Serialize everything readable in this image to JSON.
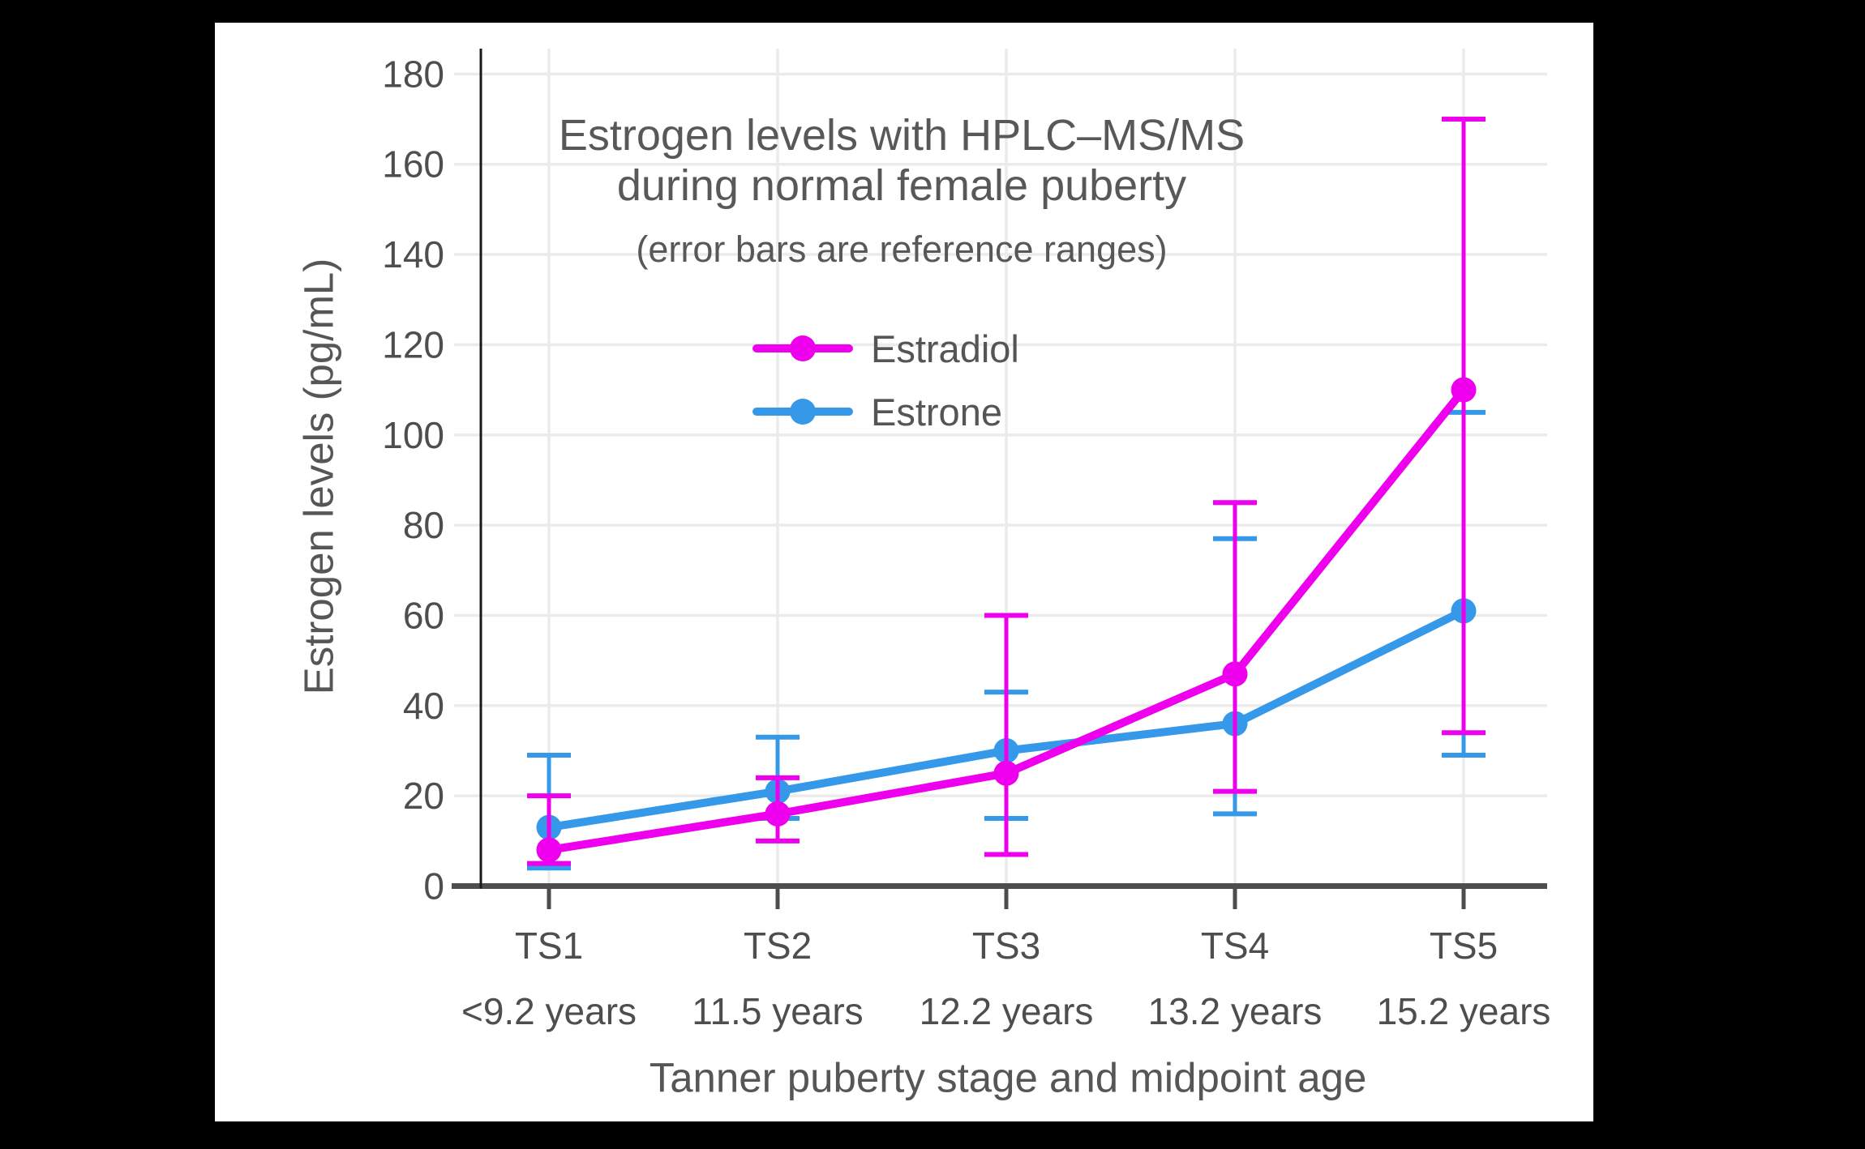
{
  "page": {
    "background": "#000000",
    "canvas_background": "#ffffff"
  },
  "title": {
    "line1": "Estrogen levels with HPLC–MS/MS",
    "line2": "during normal female puberty",
    "subtitle": "(error bars are reference ranges)"
  },
  "legend": {
    "entries": [
      {
        "label": "Estradiol",
        "color": "#ee00ee"
      },
      {
        "label": "Estrone",
        "color": "#3598e8"
      }
    ]
  },
  "axes": {
    "y_title": "Estrogen levels (pg/mL)",
    "x_title": "Tanner puberty stage and midpoint age"
  },
  "chart_data": {
    "type": "line",
    "title": "Estrogen levels with HPLC–MS/MS during normal female puberty",
    "subtitle": "(error bars are reference ranges)",
    "categories": [
      "TS1",
      "TS2",
      "TS3",
      "TS4",
      "TS5"
    ],
    "category_ages": [
      "<9.2 years",
      "11.5 years",
      "12.2 years",
      "13.2 years",
      "15.2 years"
    ],
    "xlabel": "Tanner puberty stage and midpoint age",
    "ylabel": "Estrogen levels (pg/mL)",
    "ylim": [
      0,
      185
    ],
    "ytick_step": 20,
    "grid": true,
    "legend_position": "upper-left-inside",
    "error_bars": "reference ranges",
    "series": [
      {
        "name": "Estradiol",
        "color": "#ee00ee",
        "values": [
          8,
          16,
          25,
          47,
          110
        ],
        "error_low": [
          5,
          10,
          7,
          21,
          34
        ],
        "error_high": [
          20,
          24,
          60,
          85,
          170
        ]
      },
      {
        "name": "Estrone",
        "color": "#3598e8",
        "values": [
          13,
          21,
          30,
          36,
          61
        ],
        "error_low": [
          4,
          15,
          15,
          16,
          29
        ],
        "error_high": [
          29,
          33,
          43,
          77,
          105
        ]
      }
    ],
    "colors": {
      "gridline": "#ebebeb",
      "x_axis_line": "#4d4d4d",
      "y_axis_line": "#1a1a1a",
      "tick_label": "#4e4e4e"
    }
  }
}
